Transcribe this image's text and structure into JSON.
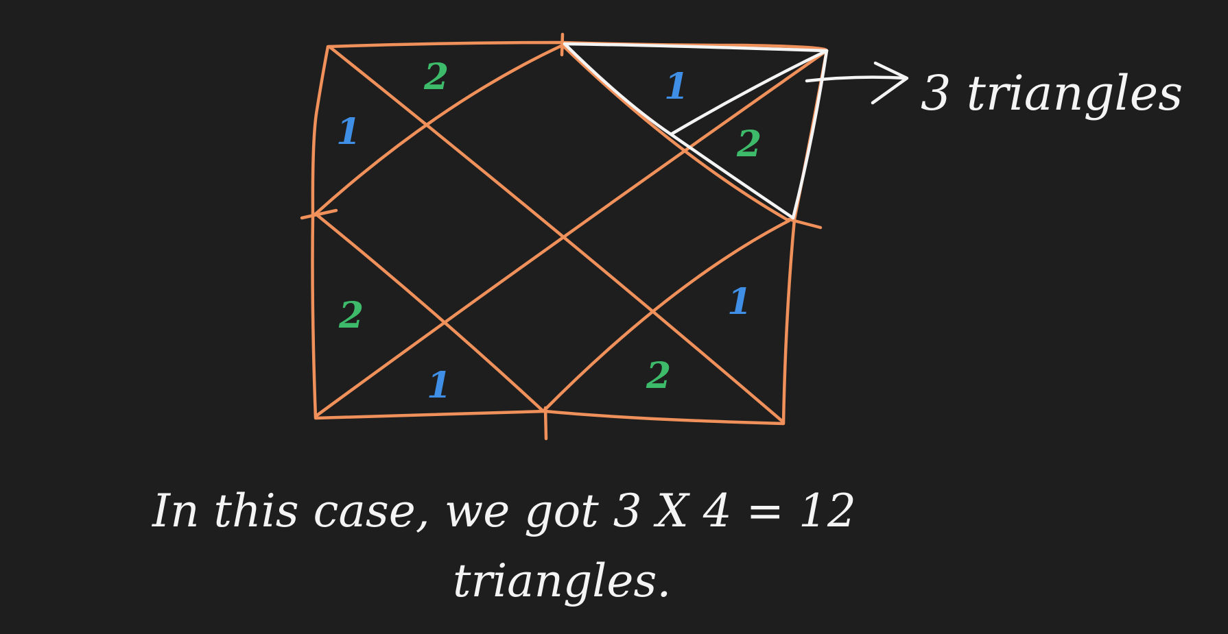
{
  "colors": {
    "background": "#1e1e1e",
    "rectangle": "#f0905a",
    "highlight": "#f4f4f4",
    "label_one": "#3f8fe6",
    "label_two": "#3dbb6a",
    "text": "#f4f4f4"
  },
  "diagram": {
    "triangle_labels": [
      "2",
      "1",
      "1",
      "2",
      "2",
      "1",
      "1",
      "2"
    ],
    "callout_text": "3 triangles"
  },
  "caption": {
    "line1": "In this case, we got 3 X 4 = 12",
    "line2": "triangles."
  }
}
